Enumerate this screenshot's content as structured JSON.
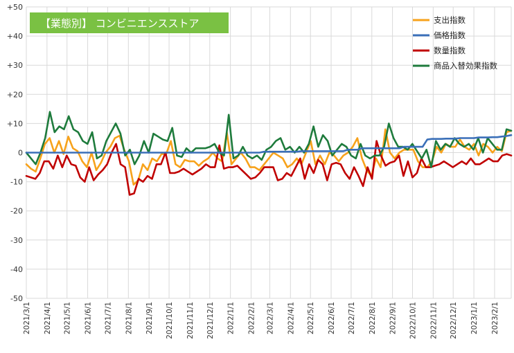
{
  "chart_data": {
    "type": "line",
    "title": "【業態別】 コンビニエンスストア",
    "title_bg": "#7ac143",
    "y_range": [
      -50,
      50
    ],
    "y_ticks": [
      50,
      40,
      30,
      20,
      10,
      0,
      -10,
      -20,
      -30,
      -40,
      -50
    ],
    "y_tick_labels": [
      "+50",
      "+40",
      "+30",
      "+20",
      "+10",
      "0",
      "-10",
      "-20",
      "-30",
      "-40",
      "-50"
    ],
    "x_tick_labels": [
      "2021/3/1",
      "2021/4/1",
      "2021/5/1",
      "2021/6/1",
      "2021/7/1",
      "2021/8/1",
      "2021/9/1",
      "2021/10/1",
      "2021/11/1",
      "2021/12/1",
      "2022/1/1",
      "2022/2/1",
      "2022/3/1",
      "2022/4/1",
      "2022/5/1",
      "2022/6/1",
      "2022/7/1",
      "2022/8/1",
      "2022/9/1",
      "2022/10/1",
      "2022/11/1",
      "2022/12/1",
      "2023/1/1",
      "2023/2/1"
    ],
    "x_start": "2021/3/1",
    "x_end": "2023/2/26",
    "grid": true,
    "legend_position": "top-right",
    "series": [
      {
        "name": "支出指数",
        "color": "#f7a21b",
        "values": [
          -4,
          -5.5,
          -6.5,
          -2,
          3,
          5,
          0,
          4,
          -0.5,
          5.5,
          1.5,
          0.5,
          -3,
          -5,
          0,
          -6,
          -3.5,
          0,
          2,
          5,
          5.8,
          1,
          -3,
          -11,
          -9.5,
          -4,
          -6,
          -2,
          -3,
          -0.5,
          -0.5,
          4,
          -4,
          -5,
          -2.5,
          -3,
          -3,
          -4.5,
          -3,
          -2,
          0,
          -2,
          -3,
          7,
          -4,
          -2,
          0,
          -2,
          -5,
          -5,
          -6,
          -4,
          -2,
          0,
          -1,
          -2,
          -5,
          -4,
          -2,
          -4,
          0,
          4,
          -4,
          -1,
          -4,
          0,
          -1,
          -3,
          -1,
          0,
          2,
          5,
          -2,
          -6,
          -8,
          -2,
          -5,
          8,
          0,
          -2,
          0,
          1,
          1,
          1,
          -3,
          -5,
          -5,
          -3,
          2,
          0,
          3,
          2,
          2,
          4.5,
          2,
          1,
          3,
          -1,
          3,
          2,
          0,
          2,
          0.5,
          7,
          7.5
        ]
      },
      {
        "name": "価格指数",
        "color": "#3a6fb8",
        "values": [
          0,
          0,
          0,
          0,
          0,
          0,
          0,
          0,
          0,
          0,
          0,
          0,
          0,
          0,
          0,
          0,
          0,
          0,
          0,
          0,
          0,
          0,
          0,
          0,
          0,
          0,
          0,
          0,
          0,
          0,
          0,
          0,
          0,
          0,
          0,
          0,
          0,
          0,
          0,
          0,
          0,
          0,
          0,
          0,
          0,
          0,
          0,
          0,
          0,
          0,
          0,
          0.3,
          0.3,
          0.3,
          0.3,
          0.3,
          0.3,
          0.3,
          0.3,
          0.5,
          0.5,
          0.5,
          0.5,
          0.5,
          0.5,
          0.5,
          0.5,
          0.5,
          0.5,
          1,
          1,
          1,
          1.5,
          1.5,
          1.5,
          1.5,
          1.5,
          1.5,
          1.5,
          1.5,
          1.5,
          2,
          2,
          2,
          2,
          2,
          4.5,
          4.7,
          4.7,
          4.7,
          4.8,
          4.8,
          4.8,
          5,
          5,
          5,
          5,
          5.2,
          5.2,
          5.2,
          5.3,
          5.3,
          5.5,
          5.7,
          6
        ]
      },
      {
        "name": "数量指数",
        "color": "#c00000",
        "values": [
          -8,
          -8.5,
          -9,
          -7,
          -3,
          -3,
          -5.5,
          -1,
          -5,
          -1,
          -4,
          -4.5,
          -8.5,
          -10,
          -5,
          -9.5,
          -7.5,
          -6,
          -4,
          0,
          3,
          -4,
          -5,
          -14.5,
          -14,
          -9,
          -10,
          -8,
          -9,
          -4,
          -4,
          0,
          -7,
          -7,
          -6.5,
          -5.5,
          -6.5,
          -7.5,
          -6.5,
          -5.5,
          -4,
          -5,
          -5,
          2.5,
          -5.5,
          -5,
          -5,
          -4.5,
          -6,
          -7.5,
          -9,
          -8.5,
          -7,
          -5,
          -5,
          -5,
          -9.5,
          -9,
          -7,
          -8,
          -5,
          -2,
          -9,
          -4,
          -7,
          -2.5,
          -4,
          -9.5,
          -4,
          -3.5,
          -4,
          -7,
          -9,
          -5,
          -8,
          -11.5,
          -5,
          -9,
          4,
          -1,
          -4.5,
          -3.5,
          -3,
          -1,
          -8,
          -3,
          -8.5,
          -7,
          -2,
          -5,
          -5,
          -4.5,
          -4,
          -3,
          -4,
          -5,
          -4,
          -3,
          -4,
          -2,
          -4,
          -4,
          -3,
          -2,
          -3,
          -3,
          -1,
          -0.5,
          -1
        ]
      },
      {
        "name": "商品入替効果指数",
        "color": "#1e7b3c",
        "values": [
          0,
          -2,
          -4,
          0,
          5,
          14,
          7,
          9,
          8,
          12.5,
          8,
          7,
          4,
          3,
          7,
          -2,
          -1,
          4,
          7,
          10,
          6.5,
          -1,
          1,
          -4,
          -1,
          4,
          0,
          6.5,
          5.5,
          4.5,
          4,
          8.5,
          -1,
          -1.5,
          1.5,
          0,
          1.5,
          1.5,
          1.5,
          2,
          3,
          0,
          -1,
          13,
          -2,
          -1,
          2,
          -1,
          -2,
          -1,
          -2.5,
          1,
          2,
          4,
          5,
          1,
          2,
          0,
          2,
          0,
          3,
          9,
          2,
          6,
          4,
          -1,
          1,
          3,
          2,
          -1,
          -2,
          3,
          -1,
          -2,
          -1,
          -1,
          2,
          10,
          5,
          2,
          2,
          1,
          3,
          0.5,
          -2,
          1,
          -5,
          4,
          1,
          3,
          2,
          5,
          3,
          2,
          3,
          1,
          5,
          0,
          5,
          3,
          1,
          1,
          8,
          7.5
        ]
      }
    ]
  }
}
